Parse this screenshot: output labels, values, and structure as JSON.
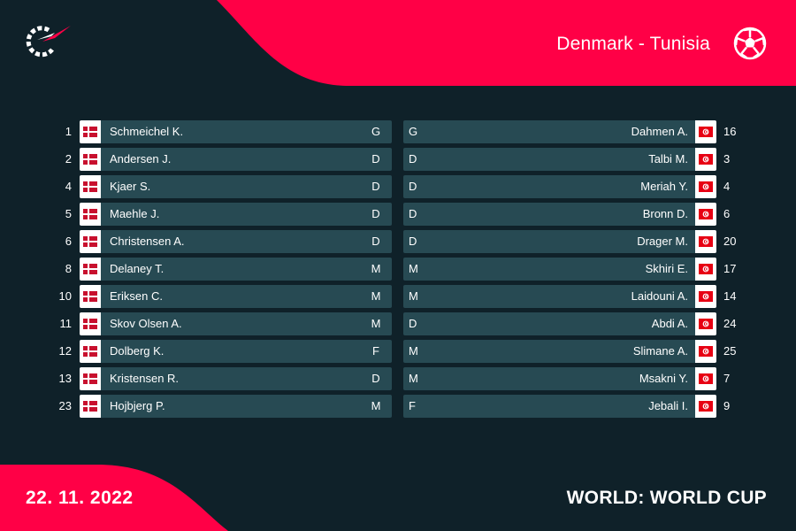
{
  "header": {
    "match_title": "Denmark - Tunisia",
    "logo_icon": "flashscore-logo-icon",
    "sport_icon": "soccer-ball-icon"
  },
  "colors": {
    "background": "#0f2129",
    "accent": "#ff0046",
    "row": "#274a53",
    "denmark_red": "#c8102e",
    "tunisia_red": "#e70013"
  },
  "home": {
    "team": "Denmark",
    "flag_icon": "denmark-flag-icon",
    "players": [
      {
        "number": "1",
        "name": "Schmeichel K.",
        "position": "G"
      },
      {
        "number": "2",
        "name": "Andersen J.",
        "position": "D"
      },
      {
        "number": "4",
        "name": "Kjaer S.",
        "position": "D"
      },
      {
        "number": "5",
        "name": "Maehle J.",
        "position": "D"
      },
      {
        "number": "6",
        "name": "Christensen A.",
        "position": "D"
      },
      {
        "number": "8",
        "name": "Delaney T.",
        "position": "M"
      },
      {
        "number": "10",
        "name": "Eriksen C.",
        "position": "M"
      },
      {
        "number": "11",
        "name": "Skov Olsen A.",
        "position": "M"
      },
      {
        "number": "12",
        "name": "Dolberg K.",
        "position": "F"
      },
      {
        "number": "13",
        "name": "Kristensen R.",
        "position": "D"
      },
      {
        "number": "23",
        "name": "Hojbjerg P.",
        "position": "M"
      }
    ]
  },
  "away": {
    "team": "Tunisia",
    "flag_icon": "tunisia-flag-icon",
    "players": [
      {
        "number": "16",
        "name": "Dahmen A.",
        "position": "G"
      },
      {
        "number": "3",
        "name": "Talbi M.",
        "position": "D"
      },
      {
        "number": "4",
        "name": "Meriah Y.",
        "position": "D"
      },
      {
        "number": "6",
        "name": "Bronn D.",
        "position": "D"
      },
      {
        "number": "20",
        "name": "Drager M.",
        "position": "D"
      },
      {
        "number": "17",
        "name": "Skhiri E.",
        "position": "M"
      },
      {
        "number": "14",
        "name": "Laidouni A.",
        "position": "M"
      },
      {
        "number": "24",
        "name": "Abdi A.",
        "position": "D"
      },
      {
        "number": "25",
        "name": "Slimane A.",
        "position": "M"
      },
      {
        "number": "7",
        "name": "Msakni Y.",
        "position": "M"
      },
      {
        "number": "9",
        "name": "Jebali I.",
        "position": "F"
      }
    ]
  },
  "footer": {
    "date": "22. 11. 2022",
    "competition": "WORLD: WORLD CUP"
  }
}
